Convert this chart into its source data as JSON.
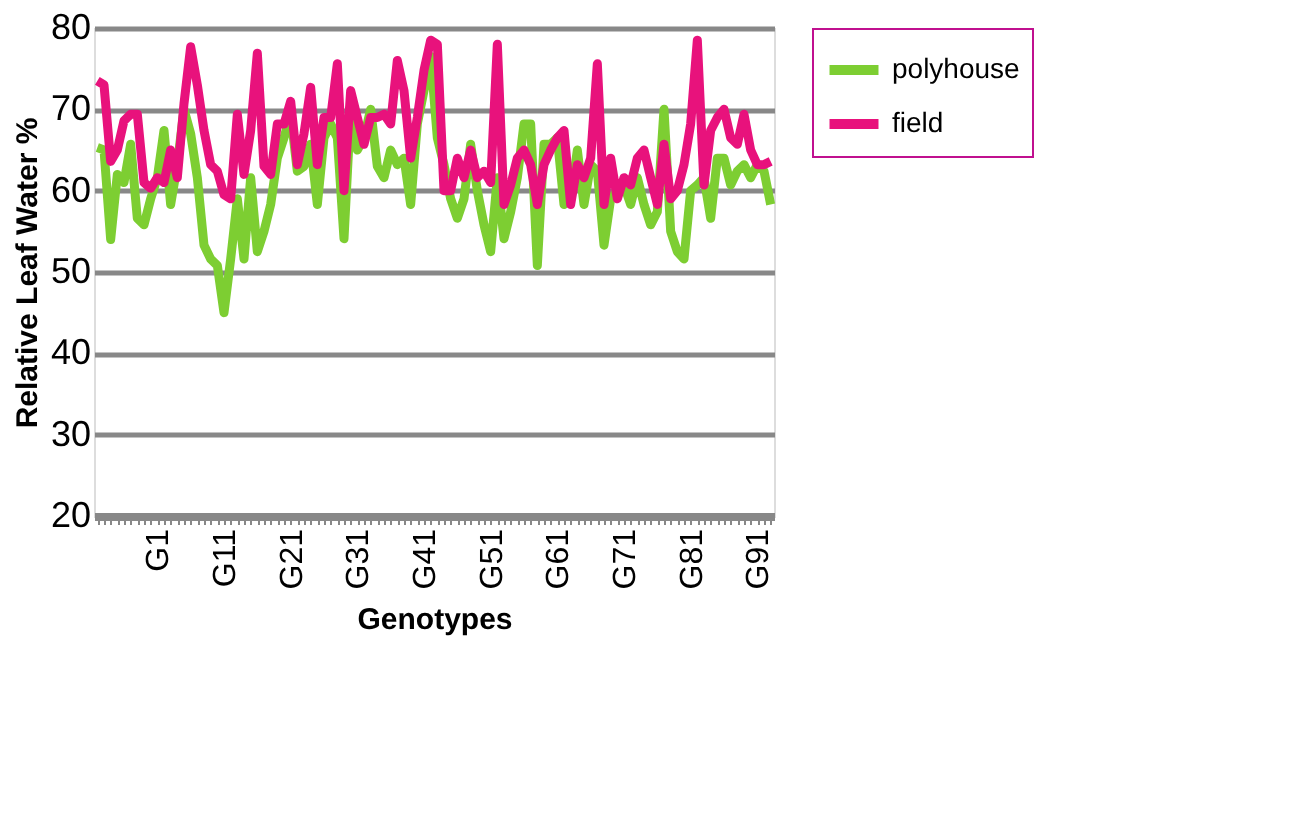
{
  "chart_data": {
    "type": "line",
    "xlabel": "Genotypes",
    "ylabel": "Relative Leaf Water %",
    "categories": [
      null,
      null,
      null,
      null,
      null,
      null,
      null,
      null,
      null,
      "G1",
      null,
      null,
      null,
      null,
      null,
      null,
      null,
      null,
      null,
      "G11",
      null,
      null,
      null,
      null,
      null,
      null,
      null,
      null,
      null,
      "G21",
      null,
      null,
      null,
      null,
      null,
      null,
      null,
      null,
      null,
      "G31",
      null,
      null,
      null,
      null,
      null,
      null,
      null,
      null,
      null,
      "G41",
      null,
      null,
      null,
      null,
      null,
      null,
      null,
      null,
      null,
      "G51",
      null,
      null,
      null,
      null,
      null,
      null,
      null,
      null,
      null,
      "G61",
      null,
      null,
      null,
      null,
      null,
      null,
      null,
      null,
      null,
      "G71",
      null,
      null,
      null,
      null,
      null,
      null,
      null,
      null,
      null,
      "G81",
      null,
      null,
      null,
      null,
      null,
      null,
      null,
      null,
      null,
      "G91",
      null,
      null
    ],
    "series": [
      {
        "name": "polyhouse",
        "color": "#7dce32",
        "values": [
          65.3,
          65,
          54,
          62,
          61,
          65.7,
          56.6,
          55.8,
          59,
          61.6,
          67.4,
          58.3,
          63.2,
          70,
          67,
          61.6,
          53.3,
          51.6,
          50.8,
          45,
          51.6,
          59,
          51.6,
          61.6,
          52.5,
          55,
          58.3,
          64,
          66.5,
          69.4,
          62.4,
          63,
          65.7,
          58.3,
          66.5,
          68.2,
          66.5,
          54.1,
          70,
          65,
          66.5,
          70,
          63,
          61.6,
          65,
          63.2,
          64,
          58.3,
          68.2,
          72.3,
          76.5,
          66.5,
          63.2,
          59,
          56.6,
          59,
          65.7,
          60,
          55.8,
          52.5,
          61.6,
          54.1,
          57.4,
          61.6,
          68.2,
          68.2,
          50.8,
          65.7,
          65.7,
          66.5,
          58.3,
          59,
          65,
          58.3,
          63.2,
          62.4,
          53.3,
          59,
          60,
          60.7,
          58.3,
          61.6,
          58.3,
          55.8,
          57.4,
          70,
          55,
          52.5,
          51.6,
          60,
          60.7,
          61.6,
          56.6,
          64,
          64,
          60.7,
          62.4,
          63.2,
          61.6,
          63.2,
          62.4,
          58.3
        ]
      },
      {
        "name": "field",
        "color": "#e8127c",
        "values": [
          73.5,
          73,
          63.6,
          65,
          68.6,
          69.4,
          69.4,
          61,
          60.3,
          61.6,
          61,
          65,
          61.6,
          70.7,
          77.7,
          73,
          67.4,
          63.2,
          62.4,
          59.5,
          59,
          69.4,
          62,
          67.4,
          76.9,
          63,
          62,
          68.2,
          68.2,
          71,
          63.2,
          67,
          72.7,
          63.2,
          69,
          69,
          75.6,
          60,
          72.3,
          69,
          65.7,
          69,
          69,
          69.4,
          68.2,
          76,
          72.3,
          64,
          69,
          74.8,
          78.5,
          78,
          60,
          60,
          64,
          61.6,
          65,
          61.6,
          62.4,
          61,
          78,
          58.3,
          60.7,
          64,
          65,
          63.2,
          58.3,
          63.2,
          65,
          66.5,
          67.4,
          58.3,
          63.2,
          61.6,
          64,
          75.6,
          58.3,
          64,
          59,
          61.6,
          60.7,
          64,
          65,
          61.6,
          58.3,
          65.7,
          59,
          60,
          63.2,
          68.2,
          78.5,
          60.7,
          67.4,
          69,
          70,
          66.5,
          65.7,
          69.4,
          65,
          63.2,
          63.2,
          63.6
        ]
      }
    ],
    "ylim": [
      20,
      80
    ],
    "yticks": [
      20,
      30,
      40,
      50,
      60,
      70,
      80
    ],
    "grid": "y",
    "legend": "right",
    "line_style": "solid",
    "marker": "none"
  }
}
